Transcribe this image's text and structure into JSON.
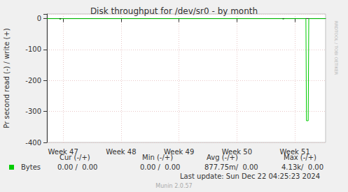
{
  "chart_data": {
    "type": "line",
    "title": "Disk throughput for /dev/sr0 - by month",
    "y_label": "Pr second read (-) / write (+)",
    "x": [
      46.72,
      46.93,
      46.95,
      46.97,
      47.5,
      48.0,
      48.5,
      49.0,
      49.5,
      50.0,
      50.5,
      50.78,
      50.8,
      50.82,
      51.0,
      51.19,
      51.2,
      51.23,
      51.24,
      51.4,
      51.53
    ],
    "series": [
      {
        "name": "Bytes",
        "color": "#00cc00",
        "values": [
          0,
          0,
          -3,
          0,
          0,
          0,
          0,
          0,
          0,
          0,
          0,
          0,
          -2,
          0,
          0,
          0,
          -330,
          -330,
          0,
          0,
          0
        ]
      }
    ],
    "xlim": [
      46.72,
      51.53
    ],
    "xticks": [
      {
        "value": 47,
        "label": "Week 47"
      },
      {
        "value": 48,
        "label": "Week 48"
      },
      {
        "value": 49,
        "label": "Week 49"
      },
      {
        "value": 50,
        "label": "Week 50"
      },
      {
        "value": 51,
        "label": "Week 51"
      }
    ],
    "ylim": [
      -400,
      15
    ],
    "yticks": [
      -400,
      -300,
      -200,
      -100,
      0
    ],
    "grid": true,
    "stats_headers": [
      "Cur (-/+)",
      "Min (-/+)",
      "Avg (-/+)",
      "Max (-/+)"
    ],
    "stats": [
      "0.00 /  0.00",
      "0.00 /  0.00",
      "877.75m/  0.00",
      "4.13k/  0.00"
    ],
    "footer": "Last update: Sun Dec 22 04:25:23 2024",
    "credit": "Munin 2.0.57",
    "side_text": "RRDTOOL / TOBI OETIKER"
  }
}
